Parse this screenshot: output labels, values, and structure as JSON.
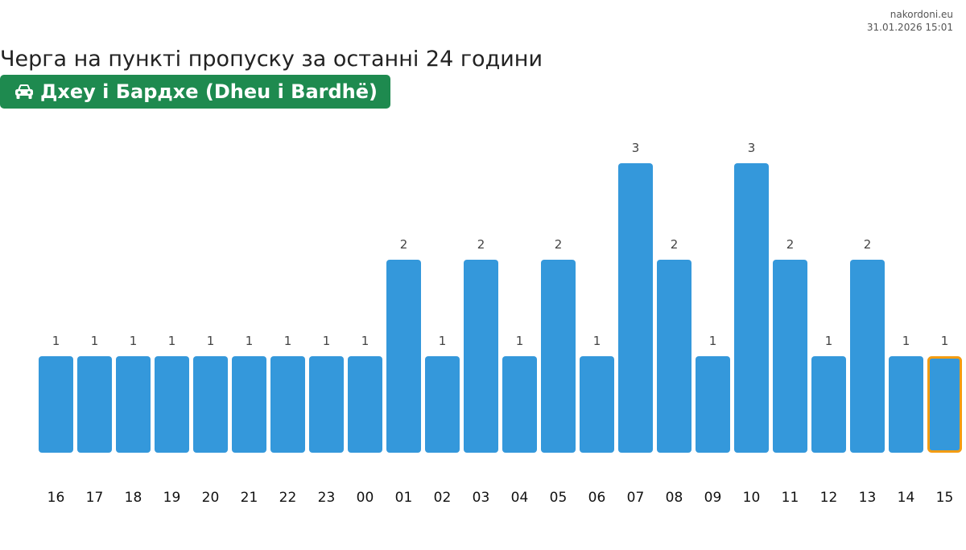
{
  "source": {
    "site": "nakordoni.eu",
    "timestamp": "31.01.2026 15:01"
  },
  "title": "Черга на пункті пропуску за останні 24 години",
  "checkpoint": {
    "icon": "car-icon",
    "name": "Дхеу і Бардхе (Dheu i Bardhë)",
    "color": "#1e8a4f"
  },
  "chart_data": {
    "type": "bar",
    "categories": [
      "16",
      "17",
      "18",
      "19",
      "20",
      "21",
      "22",
      "23",
      "00",
      "01",
      "02",
      "03",
      "04",
      "05",
      "06",
      "07",
      "08",
      "09",
      "10",
      "11",
      "12",
      "13",
      "14",
      "15"
    ],
    "values": [
      1,
      1,
      1,
      1,
      1,
      1,
      1,
      1,
      1,
      2,
      1,
      2,
      1,
      2,
      1,
      3,
      2,
      1,
      3,
      2,
      1,
      2,
      1,
      1
    ],
    "highlighted_index": 23,
    "bar_color": "#3498db",
    "highlight_border_color": "#f39c12",
    "ylim": [
      0,
      3
    ],
    "grid": false,
    "data_labels": true,
    "legend": "none"
  }
}
